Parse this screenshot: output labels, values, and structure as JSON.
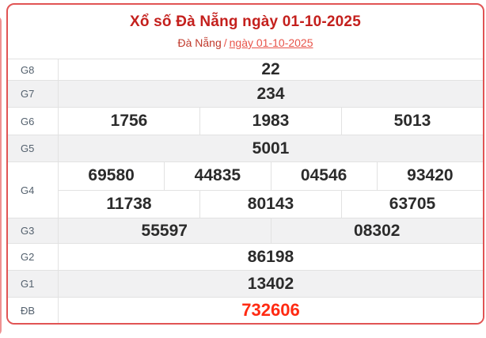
{
  "header": {
    "title": "Xổ số Đà Nẵng ngày 01-10-2025",
    "breadcrumb": {
      "region": "Đà Nẵng",
      "separator": "/",
      "date": "ngày 01-10-2025"
    }
  },
  "table": {
    "rows": [
      {
        "label": "G8",
        "groups": [
          [
            "22"
          ]
        ]
      },
      {
        "label": "G7",
        "groups": [
          [
            "234"
          ]
        ]
      },
      {
        "label": "G6",
        "groups": [
          [
            "1756",
            "1983",
            "5013"
          ]
        ]
      },
      {
        "label": "G5",
        "groups": [
          [
            "5001"
          ]
        ]
      },
      {
        "label": "G4",
        "groups": [
          [
            "69580",
            "44835",
            "04546",
            "93420"
          ],
          [
            "11738",
            "80143",
            "63705"
          ]
        ]
      },
      {
        "label": "G3",
        "groups": [
          [
            "55597",
            "08302"
          ]
        ]
      },
      {
        "label": "G2",
        "groups": [
          [
            "86198"
          ]
        ]
      },
      {
        "label": "G1",
        "groups": [
          [
            "13402"
          ]
        ]
      },
      {
        "label": "ĐB",
        "groups": [
          [
            "732606"
          ]
        ]
      }
    ]
  },
  "colors": {
    "title_red": "#c4201d",
    "breadcrumb_region": "#c0392b",
    "breadcrumb_link_red": "#e8544a",
    "special_prize_red": "#ff2a12",
    "card_border": "#e15454",
    "adjacent_edge_pink": "#ef9191",
    "stripe_background": "#f1f1f2",
    "grid_line": "#e2e2e2",
    "label_text": "#54616e",
    "value_text": "#2b2b2b"
  }
}
